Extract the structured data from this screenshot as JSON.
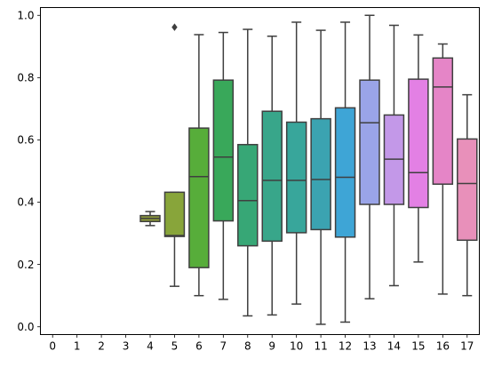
{
  "chart_data": {
    "type": "box",
    "title": "",
    "xlabel": "",
    "ylabel": "",
    "categories": [
      "0",
      "1",
      "2",
      "3",
      "4",
      "5",
      "6",
      "7",
      "8",
      "9",
      "10",
      "11",
      "12",
      "13",
      "14",
      "15",
      "16",
      "17"
    ],
    "ylim": [
      -0.025,
      1.025
    ],
    "yticks": [
      0.0,
      0.2,
      0.4,
      0.6,
      0.8,
      1.0
    ],
    "ytick_labels": [
      "0.0",
      "0.2",
      "0.4",
      "0.6",
      "0.8",
      "1.0"
    ],
    "grid": false,
    "boxes": [
      {
        "category": "0",
        "empty": true
      },
      {
        "category": "1",
        "empty": true
      },
      {
        "category": "2",
        "empty": true
      },
      {
        "category": "3",
        "empty": true
      },
      {
        "category": "4",
        "whisker_low": 0.325,
        "q1": 0.338,
        "median": 0.348,
        "q3": 0.357,
        "whisker_high": 0.37,
        "outliers": [],
        "color": "#8d9a3a"
      },
      {
        "category": "5",
        "whisker_low": 0.13,
        "q1": 0.29,
        "median": 0.293,
        "q3": 0.432,
        "whisker_high": 0.432,
        "outliers": [
          0.962
        ],
        "color": "#88a53a"
      },
      {
        "category": "6",
        "whisker_low": 0.1,
        "q1": 0.19,
        "median": 0.482,
        "q3": 0.638,
        "whisker_high": 0.938,
        "outliers": [],
        "color": "#57ad3a"
      },
      {
        "category": "7",
        "whisker_low": 0.088,
        "q1": 0.34,
        "median": 0.545,
        "q3": 0.792,
        "whisker_high": 0.945,
        "outliers": [],
        "color": "#39a85a"
      },
      {
        "category": "8",
        "whisker_low": 0.035,
        "q1": 0.26,
        "median": 0.405,
        "q3": 0.585,
        "whisker_high": 0.955,
        "outliers": [],
        "color": "#37a776"
      },
      {
        "category": "9",
        "whisker_low": 0.038,
        "q1": 0.275,
        "median": 0.47,
        "q3": 0.692,
        "whisker_high": 0.933,
        "outliers": [],
        "color": "#38a68a"
      },
      {
        "category": "10",
        "whisker_low": 0.073,
        "q1": 0.302,
        "median": 0.47,
        "q3": 0.657,
        "whisker_high": 0.978,
        "outliers": [],
        "color": "#38a69b"
      },
      {
        "category": "11",
        "whisker_low": 0.008,
        "q1": 0.312,
        "median": 0.473,
        "q3": 0.668,
        "whisker_high": 0.952,
        "outliers": [],
        "color": "#3ba3b1"
      },
      {
        "category": "12",
        "whisker_low": 0.015,
        "q1": 0.288,
        "median": 0.48,
        "q3": 0.703,
        "whisker_high": 0.978,
        "outliers": [],
        "color": "#3ea5d6"
      },
      {
        "category": "13",
        "whisker_low": 0.09,
        "q1": 0.393,
        "median": 0.655,
        "q3": 0.792,
        "whisker_high": 1.0,
        "outliers": [],
        "color": "#9aa4e8"
      },
      {
        "category": "14",
        "whisker_low": 0.132,
        "q1": 0.393,
        "median": 0.538,
        "q3": 0.68,
        "whisker_high": 0.968,
        "outliers": [],
        "color": "#c398e8"
      },
      {
        "category": "15",
        "whisker_low": 0.208,
        "q1": 0.383,
        "median": 0.495,
        "q3": 0.795,
        "whisker_high": 0.937,
        "outliers": [],
        "color": "#e380e4"
      },
      {
        "category": "16",
        "whisker_low": 0.105,
        "q1": 0.458,
        "median": 0.77,
        "q3": 0.863,
        "whisker_high": 0.908,
        "outliers": [],
        "color": "#e585c7"
      },
      {
        "category": "17",
        "whisker_low": 0.1,
        "q1": 0.278,
        "median": 0.46,
        "q3": 0.603,
        "whisker_high": 0.745,
        "outliers": [],
        "color": "#e890ba"
      }
    ]
  }
}
